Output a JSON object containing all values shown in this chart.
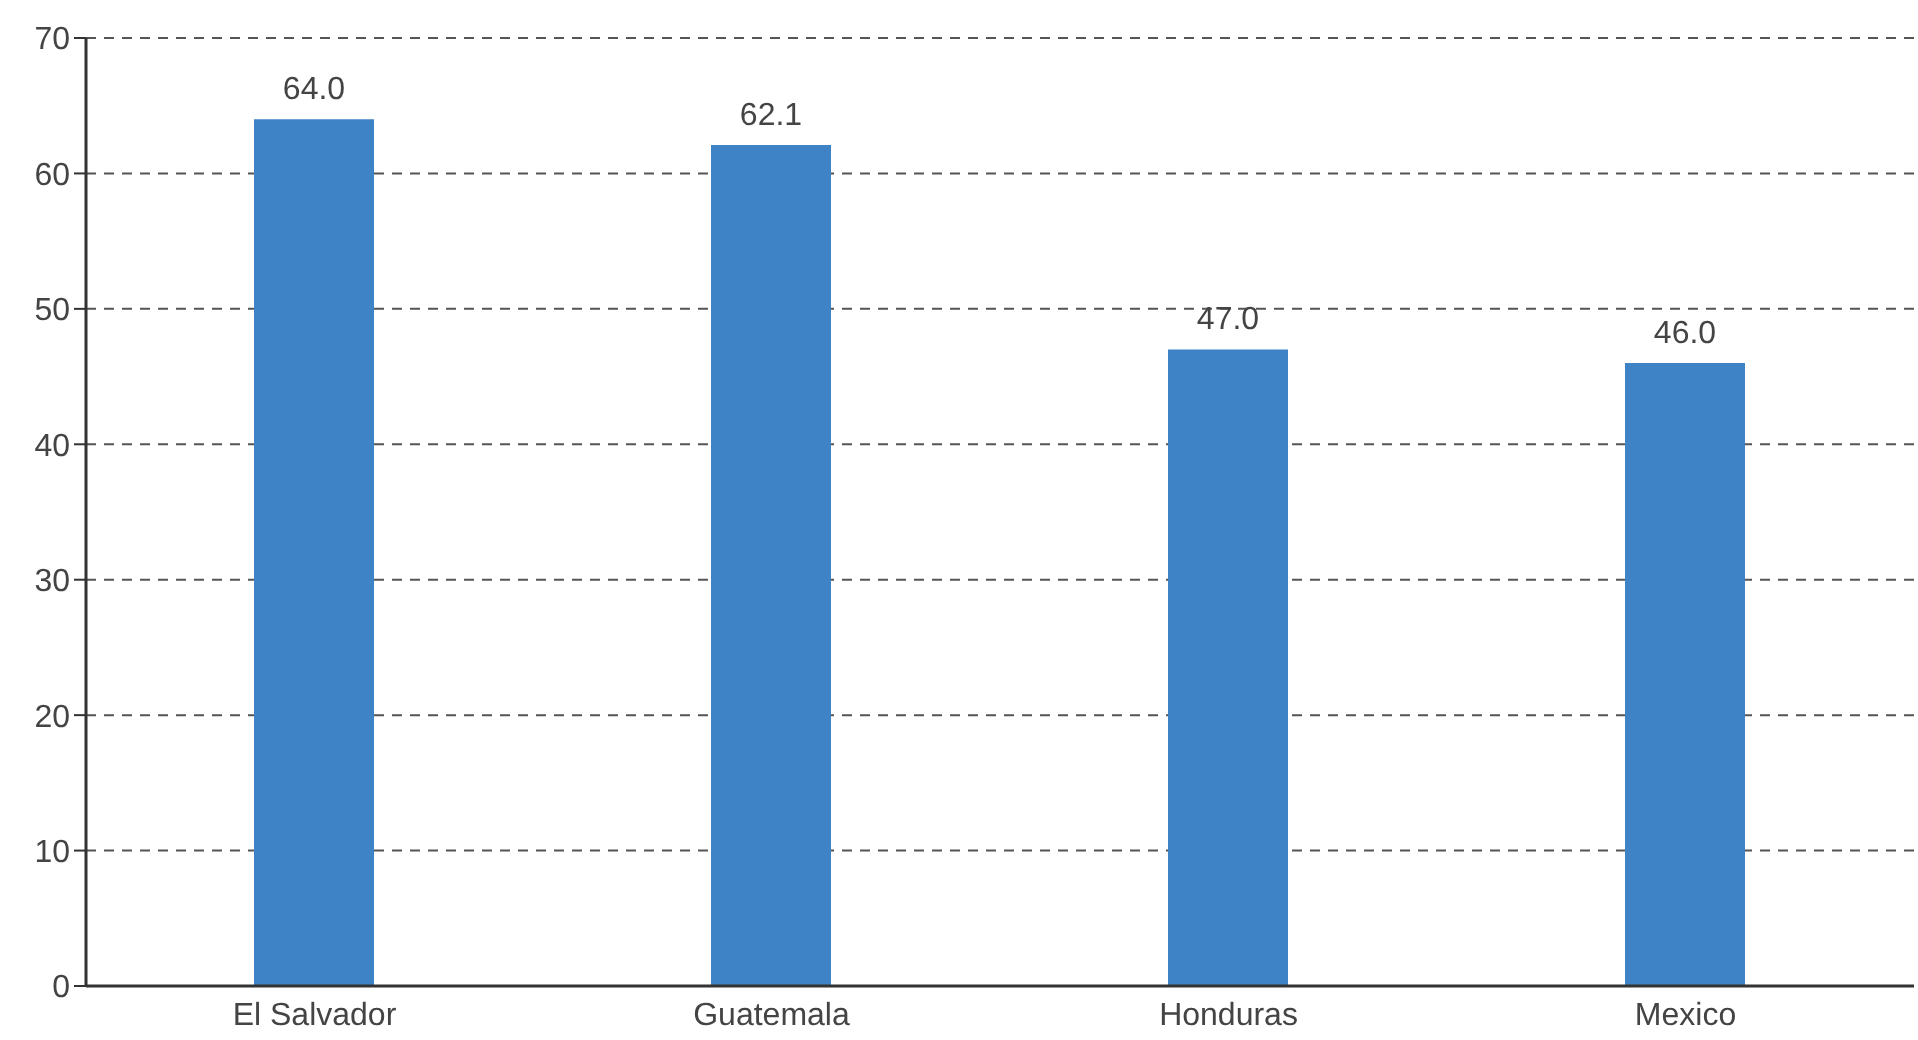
{
  "chart_data": {
    "type": "bar",
    "categories": [
      "El Salvador",
      "Guatemala",
      "Honduras",
      "Mexico"
    ],
    "values": [
      64.0,
      62.1,
      47.0,
      46.0
    ],
    "value_labels": [
      "64.0",
      "62.1",
      "47.0",
      "46.0"
    ],
    "color": "#3d83c5",
    "ylim": [
      0,
      70
    ],
    "yticks": [
      0,
      10,
      20,
      30,
      40,
      50,
      60,
      70
    ],
    "grid": "y"
  }
}
